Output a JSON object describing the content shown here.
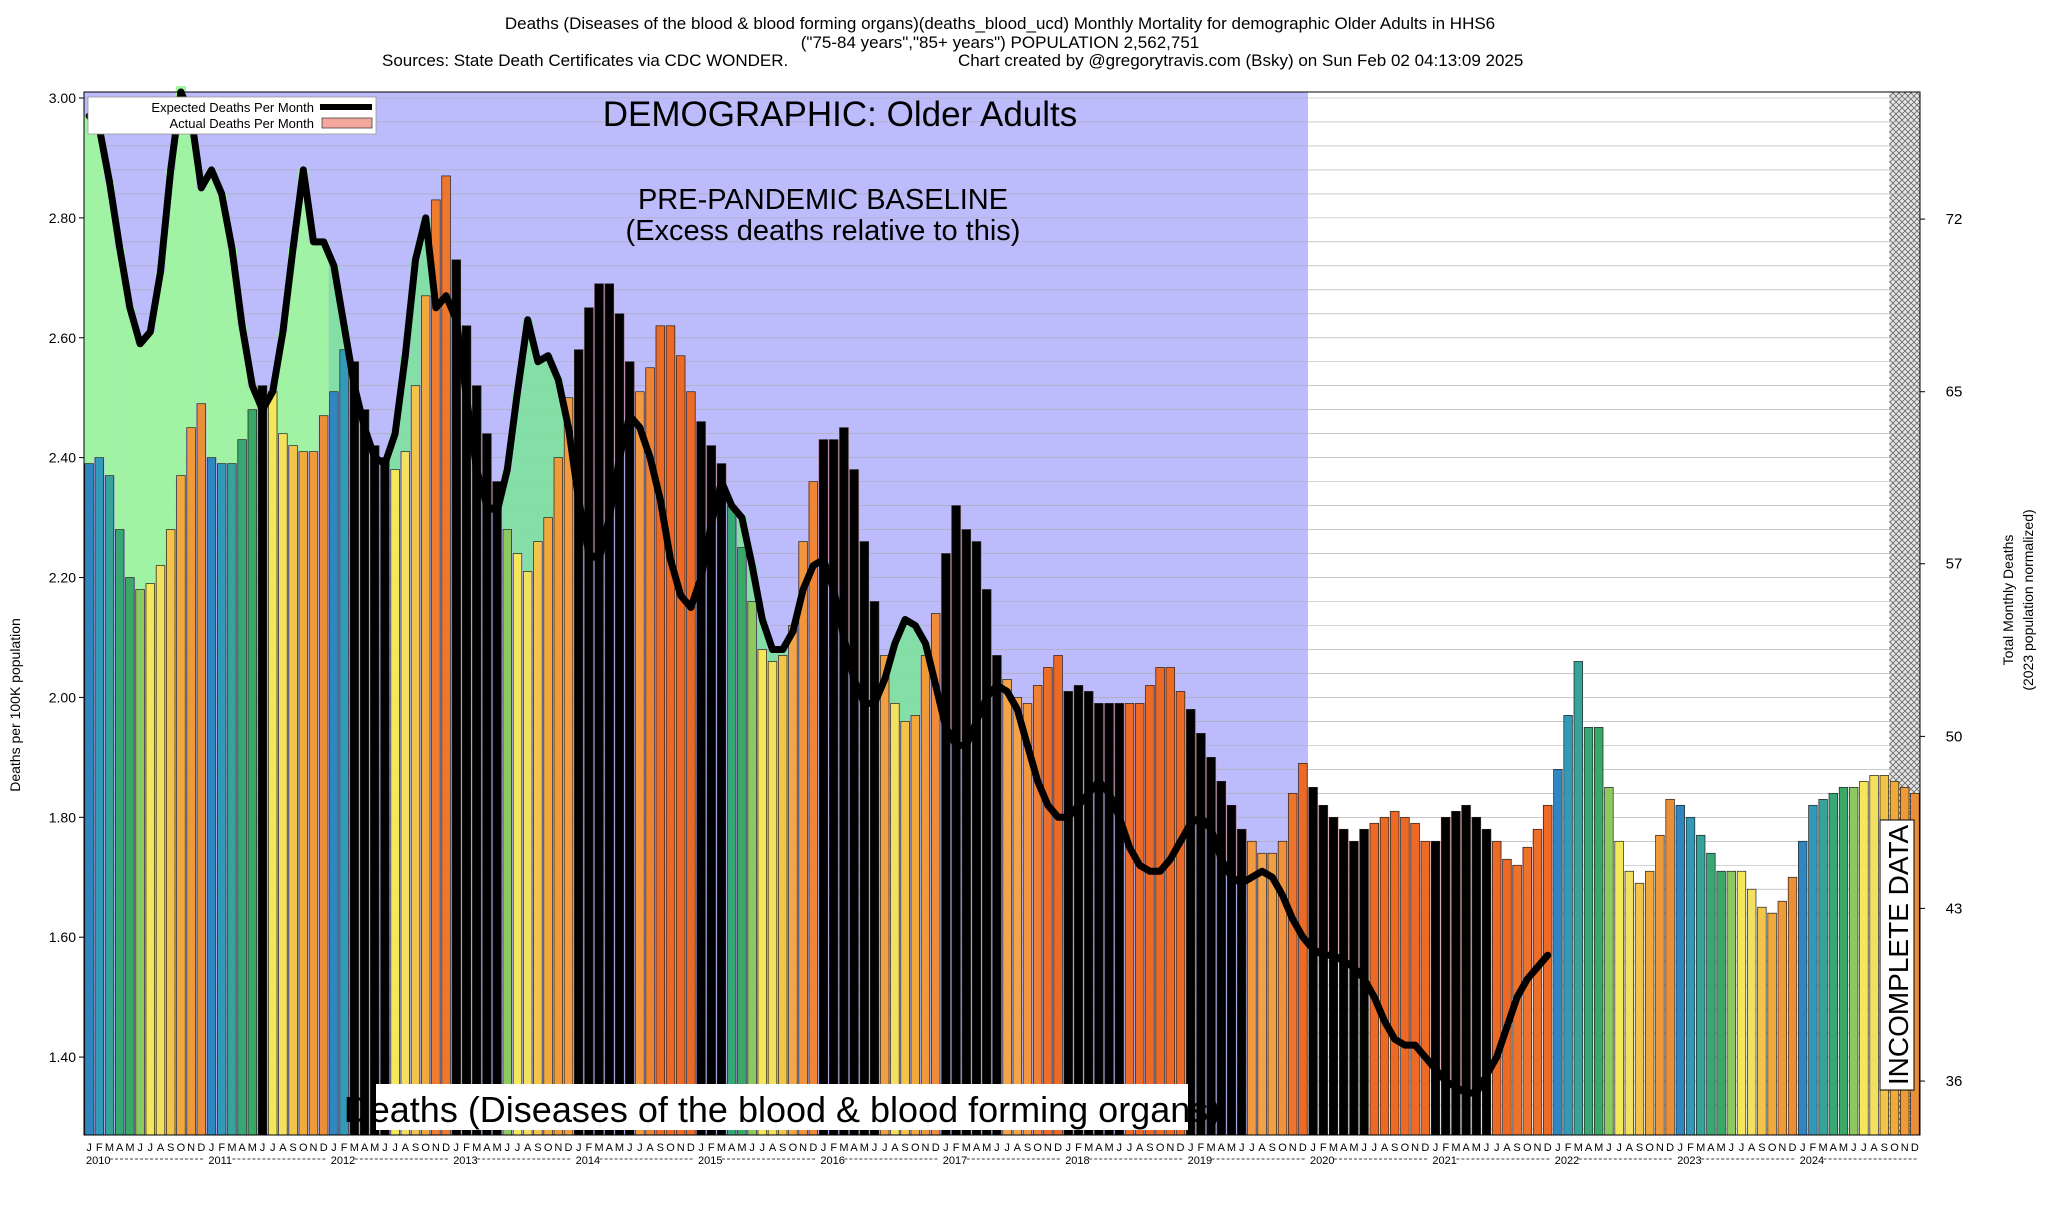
{
  "chart_data": {
    "type": "bar",
    "title_lines": [
      "Deaths (Diseases of the blood & blood forming organs)(deaths_blood_ucd) Monthly Mortality for demographic Older Adults in HHS6",
      "(\"75-84 years\",\"85+ years\") POPULATION 2,562,751",
      "Sources: State Death Certificates via CDC WONDER.",
      "Chart created by @gregorytravis.com (Bsky) on Sun Feb 02 04:13:09 2025"
    ],
    "banner": "DEMOGRAPHIC: Older Adults",
    "baseline_label_1": "PRE-PANDEMIC BASELINE",
    "baseline_label_2": "(Excess deaths relative to this)",
    "bottom_label": "Deaths (Diseases of the blood & blood forming organs)",
    "incomplete_label": "INCOMPLETE DATA",
    "ylabel": "Deaths per 100K population",
    "ylabel_right_1": "Total Monthly Deaths",
    "ylabel_right_2": "(2023 population normalized)",
    "ylim": [
      1.27,
      3.01
    ],
    "y_ticks": [
      "1.40",
      "1.60",
      "1.80",
      "2.00",
      "2.20",
      "2.40",
      "2.60",
      "2.80",
      "3.00"
    ],
    "y_right_ticks": [
      "36",
      "43",
      "50",
      "57",
      "65",
      "72"
    ],
    "y_right_tick_positions": [
      1.36,
      1.648,
      1.935,
      2.223,
      2.51,
      2.798
    ],
    "grid": true,
    "legend": {
      "position": "top-left",
      "expected": "Expected Deaths Per Month",
      "actual": "Actual Deaths Per Month"
    },
    "years": [
      "2010",
      "2011",
      "2012",
      "2013",
      "2014",
      "2015",
      "2016",
      "2017",
      "2018",
      "2019",
      "2020",
      "2021",
      "2022",
      "2023",
      "2024"
    ],
    "month_letters": [
      "J",
      "F",
      "M",
      "A",
      "M",
      "J",
      "J",
      "A",
      "S",
      "O",
      "N",
      "D"
    ],
    "baseline_region_months": [
      0,
      120
    ],
    "incomplete_region_months": [
      177,
      180
    ],
    "actual": [
      2.39,
      2.4,
      2.37,
      2.28,
      2.2,
      2.18,
      2.19,
      2.22,
      2.28,
      2.37,
      2.45,
      2.49,
      2.4,
      2.39,
      2.39,
      2.43,
      2.48,
      2.52,
      2.51,
      2.44,
      2.42,
      2.41,
      2.41,
      2.47,
      2.51,
      2.58,
      2.56,
      2.48,
      2.42,
      2.4,
      2.38,
      2.41,
      2.52,
      2.67,
      2.83,
      2.87,
      2.73,
      2.62,
      2.52,
      2.44,
      2.36,
      2.28,
      2.24,
      2.21,
      2.26,
      2.3,
      2.4,
      2.5,
      2.58,
      2.65,
      2.69,
      2.69,
      2.64,
      2.56,
      2.51,
      2.55,
      2.62,
      2.62,
      2.57,
      2.51,
      2.46,
      2.42,
      2.39,
      2.32,
      2.25,
      2.16,
      2.08,
      2.06,
      2.07,
      2.12,
      2.26,
      2.36,
      2.43,
      2.43,
      2.45,
      2.38,
      2.26,
      2.16,
      2.07,
      1.99,
      1.96,
      1.97,
      2.07,
      2.14,
      2.24,
      2.32,
      2.28,
      2.26,
      2.18,
      2.07,
      2.03,
      2.0,
      1.99,
      2.02,
      2.05,
      2.07,
      2.01,
      2.02,
      2.01,
      1.99,
      1.99,
      1.99,
      1.99,
      1.99,
      2.02,
      2.05,
      2.05,
      2.01,
      1.98,
      1.94,
      1.9,
      1.86,
      1.82,
      1.78,
      1.76,
      1.74,
      1.74,
      1.76,
      1.84,
      1.89,
      1.85,
      1.82,
      1.8,
      1.78,
      1.76,
      1.78,
      1.79,
      1.8,
      1.81,
      1.8,
      1.79,
      1.76,
      1.76,
      1.8,
      1.81,
      1.82,
      1.8,
      1.78,
      1.76,
      1.73,
      1.72,
      1.75,
      1.78,
      1.82,
      1.88,
      1.97,
      2.06,
      1.95,
      1.95,
      1.85,
      1.76,
      1.71,
      1.69,
      1.71,
      1.77,
      1.83,
      1.82,
      1.8,
      1.77,
      1.74,
      1.71,
      1.71,
      1.71,
      1.68,
      1.65,
      1.64,
      1.66,
      1.7,
      1.76,
      1.82,
      1.83,
      1.84,
      1.85,
      1.85,
      1.86,
      1.87,
      1.87,
      1.86,
      1.85,
      1.84
    ],
    "expected": [
      2.97,
      2.95,
      2.86,
      2.75,
      2.65,
      2.59,
      2.61,
      2.71,
      2.88,
      3.02,
      2.97,
      2.85,
      2.88,
      2.84,
      2.75,
      2.62,
      2.52,
      2.48,
      2.51,
      2.61,
      2.75,
      2.88,
      2.76,
      2.76,
      2.72,
      2.62,
      2.52,
      2.45,
      2.4,
      2.39,
      2.44,
      2.57,
      2.73,
      2.8,
      2.65,
      2.67,
      2.63,
      2.5,
      2.38,
      2.32,
      2.31,
      2.38,
      2.51,
      2.63,
      2.56,
      2.57,
      2.53,
      2.45,
      2.33,
      2.24,
      2.23,
      2.3,
      2.4,
      2.47,
      2.45,
      2.4,
      2.33,
      2.23,
      2.17,
      2.15,
      2.2,
      2.29,
      2.36,
      2.32,
      2.3,
      2.22,
      2.13,
      2.08,
      2.08,
      2.11,
      2.18,
      2.22,
      2.23,
      2.18,
      2.1,
      2.03,
      1.99,
      1.99,
      2.03,
      2.09,
      2.13,
      2.12,
      2.09,
      2.02,
      1.95,
      1.92,
      1.92,
      1.96,
      2.0,
      2.02,
      2.01,
      1.98,
      1.92,
      1.86,
      1.82,
      1.8,
      1.8,
      1.82,
      1.84,
      1.86,
      1.84,
      1.8,
      1.75,
      1.72,
      1.71,
      1.71,
      1.73,
      1.76,
      1.79,
      1.8,
      1.78,
      1.73,
      1.7,
      1.69,
      1.7,
      1.71,
      1.7,
      1.67,
      1.63,
      1.6,
      1.58,
      1.57,
      1.57,
      1.56,
      1.55,
      1.53,
      1.5,
      1.46,
      1.43,
      1.42,
      1.42,
      1.4,
      1.38,
      1.36,
      1.35,
      1.34,
      1.34,
      1.37,
      1.4,
      1.45,
      1.5,
      1.53,
      1.55,
      1.57
    ]
  }
}
